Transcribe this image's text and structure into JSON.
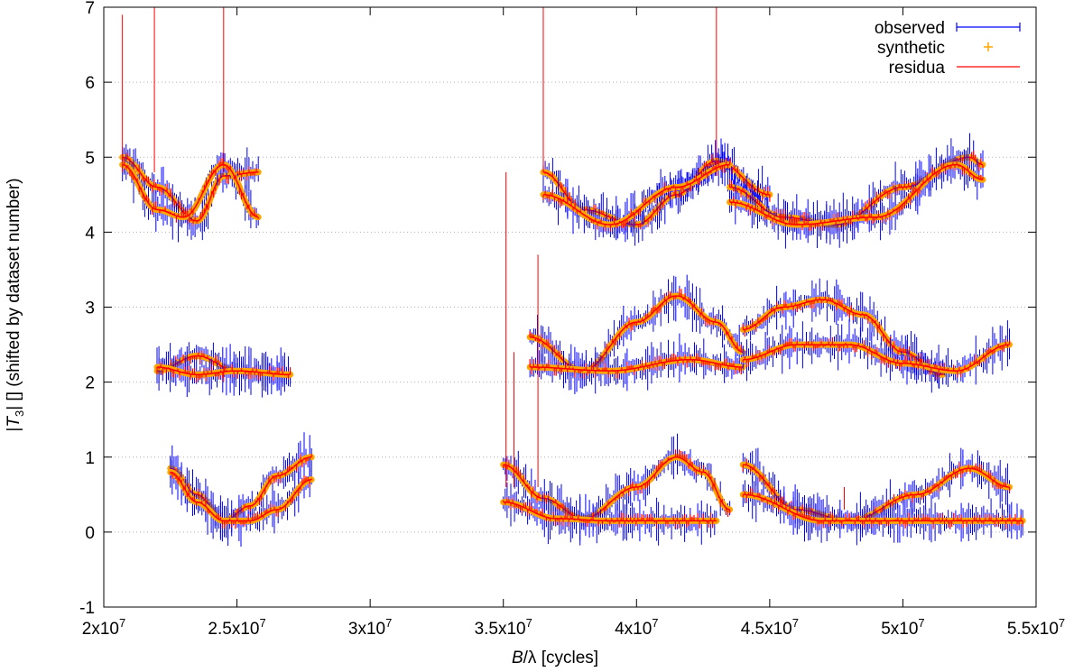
{
  "chart_data": {
    "type": "scatter",
    "title": "",
    "xlabel": "B/λ [cycles]",
    "xlabel_parts": {
      "var": "B",
      "rest": "/λ [cycles]"
    },
    "ylabel": "|T3| [] (shifted by dataset number)",
    "ylabel_parts": {
      "pre": "|",
      "var": "T",
      "sub": "3",
      "post": "| [] (shifted by dataset number)"
    },
    "xlim": [
      20000000,
      55000000
    ],
    "ylim": [
      -1,
      7
    ],
    "x_ticks": [
      {
        "value": 20000000,
        "mant": "2x10",
        "exp": "7"
      },
      {
        "value": 25000000,
        "mant": "2.5x10",
        "exp": "7"
      },
      {
        "value": 30000000,
        "mant": "3x10",
        "exp": "7"
      },
      {
        "value": 35000000,
        "mant": "3.5x10",
        "exp": "7"
      },
      {
        "value": 40000000,
        "mant": "4x10",
        "exp": "7"
      },
      {
        "value": 45000000,
        "mant": "4.5x10",
        "exp": "7"
      },
      {
        "value": 50000000,
        "mant": "5x10",
        "exp": "7"
      },
      {
        "value": 55000000,
        "mant": "5.5x10",
        "exp": "7"
      }
    ],
    "y_ticks": [
      {
        "value": -1,
        "label": "-1"
      },
      {
        "value": 0,
        "label": "0"
      },
      {
        "value": 1,
        "label": "1"
      },
      {
        "value": 2,
        "label": "2"
      },
      {
        "value": 3,
        "label": "3"
      },
      {
        "value": 4,
        "label": "4"
      },
      {
        "value": 5,
        "label": "5"
      },
      {
        "value": 6,
        "label": "6"
      },
      {
        "value": 7,
        "label": "7"
      }
    ],
    "grid": {
      "horizontal_dotted": [
        0,
        1,
        2,
        3,
        4,
        5,
        6
      ]
    },
    "legend": {
      "position": "top-right",
      "entries": [
        {
          "label": "observed",
          "style": "errorbar",
          "color": "#0000ff"
        },
        {
          "label": "synthetic",
          "style": "plus",
          "color": "#ffa500"
        },
        {
          "label": "residua",
          "style": "line",
          "color": "#ff0000"
        }
      ]
    },
    "colors": {
      "observed": "#0000ff",
      "synthetic": "#ffa500",
      "residua": "#ff0000"
    },
    "series": [
      {
        "name": "set-0a",
        "offset": 0,
        "x": [
          22500000,
          23500000,
          24500000,
          25500000,
          26500000,
          27800000
        ],
        "y": [
          0.85,
          0.5,
          0.15,
          0.35,
          0.75,
          1.0
        ]
      },
      {
        "name": "set-0b",
        "offset": 0,
        "x": [
          22500000,
          23500000,
          24500000,
          25500000,
          26500000,
          27800000
        ],
        "y": [
          0.8,
          0.4,
          0.15,
          0.15,
          0.3,
          0.7
        ]
      },
      {
        "name": "set-0c",
        "offset": 0,
        "x": [
          35000000,
          36500000,
          38000000,
          40000000,
          41500000,
          42500000,
          43500000
        ],
        "y": [
          0.9,
          0.45,
          0.18,
          0.6,
          1.0,
          0.8,
          0.3
        ]
      },
      {
        "name": "set-0d",
        "offset": 0,
        "x": [
          35000000,
          37000000,
          39000000,
          41000000,
          43000000
        ],
        "y": [
          0.4,
          0.18,
          0.15,
          0.15,
          0.15
        ]
      },
      {
        "name": "set-0e",
        "offset": 0,
        "x": [
          44000000,
          46000000,
          48000000,
          50500000,
          52500000,
          54000000
        ],
        "y": [
          0.9,
          0.3,
          0.15,
          0.5,
          0.85,
          0.6
        ]
      },
      {
        "name": "set-0f",
        "offset": 0,
        "x": [
          44000000,
          47000000,
          50000000,
          54500000
        ],
        "y": [
          0.5,
          0.15,
          0.15,
          0.15
        ]
      },
      {
        "name": "set-2a",
        "offset": 2,
        "x": [
          22000000,
          23500000,
          25000000,
          27000000
        ],
        "y": [
          2.15,
          2.35,
          2.15,
          2.1
        ]
      },
      {
        "name": "set-2b",
        "offset": 2,
        "x": [
          22000000,
          23500000,
          25000000,
          27000000
        ],
        "y": [
          2.2,
          2.1,
          2.15,
          2.1
        ]
      },
      {
        "name": "set-2c",
        "offset": 2,
        "x": [
          36000000,
          38000000,
          40000000,
          41500000,
          43000000,
          44000000
        ],
        "y": [
          2.6,
          2.15,
          2.8,
          3.15,
          2.8,
          2.4
        ]
      },
      {
        "name": "set-2d",
        "offset": 2,
        "x": [
          36000000,
          39000000,
          42000000,
          44000000
        ],
        "y": [
          2.2,
          2.15,
          2.3,
          2.2
        ]
      },
      {
        "name": "set-2e",
        "offset": 2,
        "x": [
          44000000,
          45500000,
          47000000,
          48500000,
          50000000,
          51500000
        ],
        "y": [
          2.7,
          3.0,
          3.1,
          2.9,
          2.4,
          2.1
        ]
      },
      {
        "name": "set-2f",
        "offset": 2,
        "x": [
          44000000,
          46000000,
          48000000,
          50000000,
          52000000,
          54000000
        ],
        "y": [
          2.3,
          2.5,
          2.5,
          2.25,
          2.15,
          2.5
        ]
      },
      {
        "name": "set-4a",
        "offset": 4,
        "x": [
          20700000,
          22000000,
          23500000,
          24500000,
          25800000
        ],
        "y": [
          5.0,
          4.6,
          4.15,
          4.75,
          4.8
        ]
      },
      {
        "name": "set-4b",
        "offset": 4,
        "x": [
          20700000,
          22000000,
          23000000,
          24500000,
          25800000
        ],
        "y": [
          4.9,
          4.3,
          4.2,
          4.9,
          4.2
        ]
      },
      {
        "name": "set-4c",
        "offset": 4,
        "x": [
          36500000,
          38000000,
          40000000,
          41500000,
          43000000,
          45000000
        ],
        "y": [
          4.8,
          4.3,
          4.1,
          4.5,
          4.95,
          4.5
        ]
      },
      {
        "name": "set-4d",
        "offset": 4,
        "x": [
          36500000,
          39000000,
          41500000,
          43500000
        ],
        "y": [
          4.5,
          4.1,
          4.6,
          4.9
        ]
      },
      {
        "name": "set-4e",
        "offset": 4,
        "x": [
          43500000,
          45500000,
          47500000,
          50000000,
          52500000,
          53000000
        ],
        "y": [
          4.6,
          4.2,
          4.1,
          4.6,
          5.0,
          4.9
        ]
      },
      {
        "name": "set-4f",
        "offset": 4,
        "x": [
          43500000,
          46000000,
          49000000,
          52000000,
          53000000
        ],
        "y": [
          4.4,
          4.1,
          4.2,
          4.9,
          4.7
        ]
      }
    ]
  }
}
